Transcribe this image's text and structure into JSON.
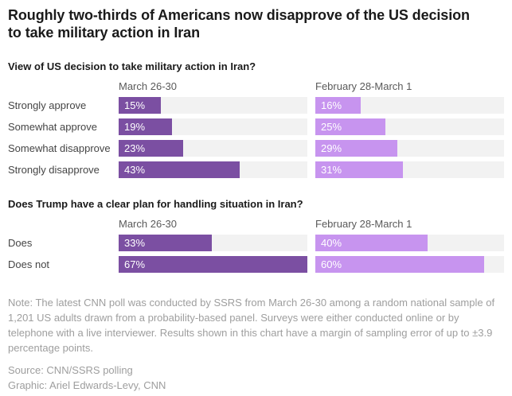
{
  "page": {
    "title": "Roughly two-thirds of Americans now disapprove of the US decision to take military action in Iran"
  },
  "colors": {
    "bar_current": "#7b4fa2",
    "bar_previous": "#c794ef",
    "bar_track": "#f2f2f2",
    "headline_text": "#1a1a1a",
    "muted_text": "#9e9e9e"
  },
  "chart_data": [
    {
      "type": "bar",
      "title": "View of US decision to take military action in Iran?",
      "categories": [
        "Strongly approve",
        "Somewhat approve",
        "Somewhat disapprove",
        "Strongly disapprove"
      ],
      "series": [
        {
          "name": "March 26-30",
          "values": [
            15,
            19,
            23,
            43
          ]
        },
        {
          "name": "February 28-March 1",
          "values": [
            16,
            25,
            29,
            31
          ]
        }
      ],
      "value_suffix": "%",
      "xlim": [
        0,
        67
      ],
      "grid": false,
      "legend_position": "column-headers"
    },
    {
      "type": "bar",
      "title": "Does Trump have a clear plan for handling situation in Iran?",
      "categories": [
        "Does",
        "Does not"
      ],
      "series": [
        {
          "name": "March 26-30",
          "values": [
            33,
            67
          ]
        },
        {
          "name": "February 28-March 1",
          "values": [
            40,
            60
          ]
        }
      ],
      "value_suffix": "%",
      "xlim": [
        0,
        67
      ],
      "grid": false,
      "legend_position": "column-headers"
    }
  ],
  "footer": {
    "note": "Note: The latest CNN poll was conducted by SSRS from March 26-30 among a random national sample of 1,201 US adults drawn from a probability-based panel. Surveys were either conducted online or by telephone with a live interviewer. Results shown in this chart have a margin of sampling error of up to ±3.9 percentage points.",
    "source": "Source: CNN/SSRS polling",
    "credit": "Graphic: Ariel Edwards-Levy, CNN"
  }
}
